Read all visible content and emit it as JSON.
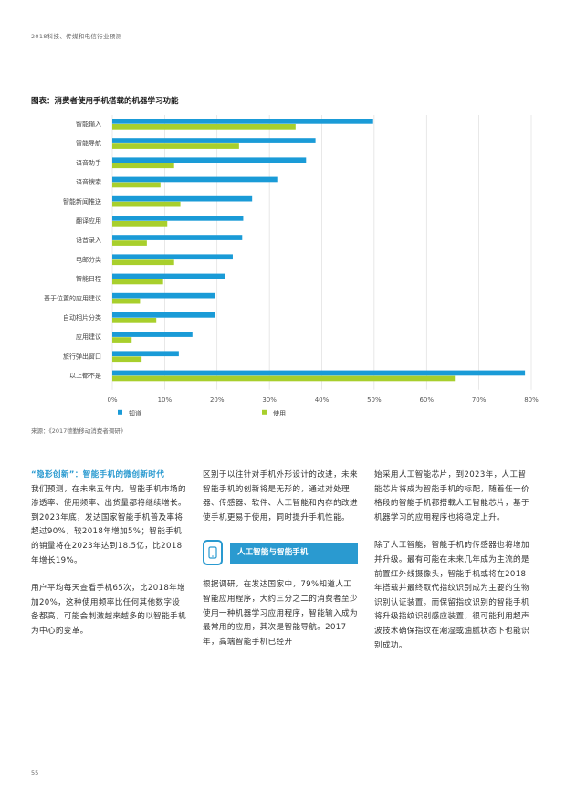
{
  "header": {
    "title": "2018科技、传媒和电信行业预测"
  },
  "chart_title": {
    "prefix": "图表",
    "text": "：消费者使用手机搭载的机器学习功能"
  },
  "chart_data": {
    "type": "bar",
    "orientation": "horizontal",
    "categories": [
      "智能输入",
      "智能导航",
      "语音助手",
      "语音搜索",
      "智能新闻推送",
      "翻译应用",
      "语音录入",
      "电邮分类",
      "智能日程",
      "基于位置的应用建议",
      "自动相片分类",
      "应用建议",
      "旅行弹出窗口",
      "以上都不是"
    ],
    "series": [
      {
        "name": "知道",
        "color": "#1a9bd7",
        "values": [
          49.8,
          38.8,
          37.0,
          31.5,
          26.7,
          25.0,
          24.8,
          23.0,
          21.6,
          19.6,
          19.6,
          15.3,
          12.7,
          78.8
        ]
      },
      {
        "name": "使用",
        "color": "#a8cf2c",
        "values": [
          35.0,
          24.2,
          11.8,
          9.2,
          13.0,
          10.5,
          6.6,
          11.8,
          9.7,
          5.3,
          8.4,
          3.7,
          5.6,
          65.4
        ]
      }
    ],
    "xlim": [
      0,
      80
    ],
    "xticks": [
      "0%",
      "10%",
      "20%",
      "30%",
      "40%",
      "50%",
      "60%",
      "70%",
      "80%"
    ],
    "grid": true,
    "legend_position": "bottom"
  },
  "source": "来源：《2017德勤移动消费者调研》",
  "col1": {
    "lead": "“隐形创新”：智能手机的微创新时代",
    "p1": "我们预测，在未来五年内，智能手机市场的渗透率、使用频率、出货量都将继续增长。到2023年底，发达国家智能手机普及率将超过90%，较2018年增加5%；智能手机的销量将在2023年达到18.5亿，比2018年增长19%。",
    "p2": "用户平均每天查看手机65次，比2018年增加20%，这种使用频率比任何其他数字设备都高，可能会刺激越来越多的以智能手机为中心的变革。"
  },
  "col2": {
    "p1": "区别于以往针对手机外形设计的改进，未来智能手机的创新将是无形的，通过对处理器、传感器、软件、人工智能和内存的改进使手机更易于使用，同时提升手机性能。",
    "feature_title": "人工智能与智能手机",
    "p2": "根据调研，在发达国家中，79%知道人工智能应用程序，大约三分之二的消费者至少使用一种机器学习应用程序，智能输入成为最常用的应用，其次是智能导航。2017年，高端智能手机已经开"
  },
  "col3": {
    "p1": "始采用人工智能芯片，到2023年，人工智能芯片将成为智能手机的标配，随着任一价格段的智能手机都搭载人工智能芯片，基于机器学习的应用程序也将稳定上升。",
    "p2": "除了人工智能，智能手机的传感器也将增加并升级。最有可能在未来几年成为主流的是前置红外线摄像头，智能手机或将在2018年搭载并最终取代指纹识别成为主要的生物识别认证装置。而保留指纹识别的智能手机将升级指纹识别感应装置，很可能利用超声波技术确保指纹在潮湿或油腻状态下也能识别成功。"
  },
  "page_number": "55"
}
